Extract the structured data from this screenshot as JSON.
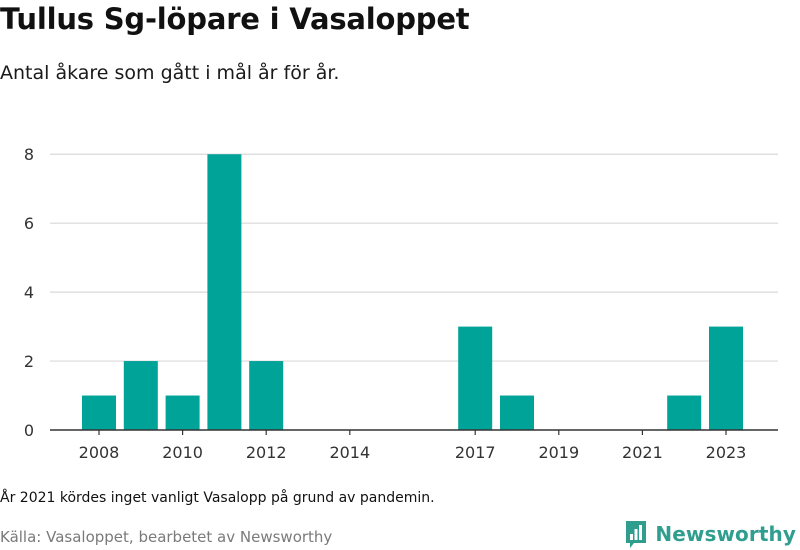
{
  "chart_data": {
    "type": "bar",
    "title": "Tullus Sg-löpare i Vasaloppet",
    "subtitle": "Antal åkare som gått i mål år för år.",
    "x": [
      2008,
      2009,
      2010,
      2011,
      2012,
      2017,
      2018,
      2022,
      2023
    ],
    "values": [
      1,
      2,
      1,
      8,
      2,
      3,
      1,
      1,
      3
    ],
    "x_ticks": [
      2008,
      2010,
      2012,
      2014,
      2017,
      2019,
      2021,
      2023
    ],
    "y_ticks": [
      0,
      2,
      4,
      6,
      8
    ],
    "ylim": [
      0,
      8.5
    ],
    "xlim": [
      2007.5,
      2023.5
    ],
    "grid": "horizontal",
    "bar_color": "#00a398"
  },
  "note": "År 2021 kördes inget vanligt Vasalopp på grund av pandemin.",
  "source": "Källa: Vasaloppet, bearbetet av Newsworthy",
  "brand": {
    "name": "Newsworthy",
    "icon": "newsworthy-logo-icon",
    "color": "#2f9e8f"
  }
}
